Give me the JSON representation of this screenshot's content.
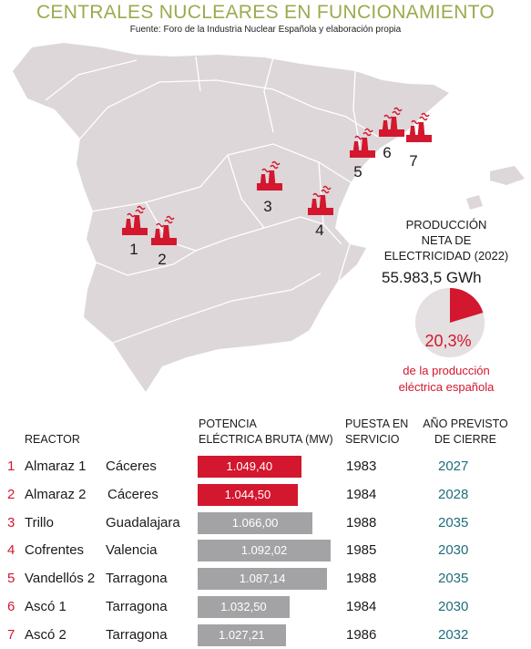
{
  "header": {
    "title": "CENTRALES NUCLEARES EN FUNCIONAMIENTO",
    "source": "Fuente: Foro de la Industria Nuclear Española y elaboración propia"
  },
  "colors": {
    "title": "#9aab4e",
    "accent_red": "#d3172e",
    "bar_gray": "#a3a3a5",
    "map_fill": "#ddd7d9",
    "year_teal": "#1f6e7a"
  },
  "map": {
    "markers": [
      {
        "label": "1",
        "icon": "nuclear-plant-icon"
      },
      {
        "label": "2",
        "icon": "nuclear-plant-icon"
      },
      {
        "label": "3",
        "icon": "nuclear-plant-icon"
      },
      {
        "label": "4",
        "icon": "nuclear-plant-icon"
      },
      {
        "label": "5",
        "icon": "nuclear-plant-icon"
      },
      {
        "label": "6",
        "icon": "nuclear-plant-icon"
      },
      {
        "label": "7",
        "icon": "nuclear-plant-icon"
      }
    ]
  },
  "production": {
    "label_line1": "PRODUCCIÓN",
    "label_line2": "NETA DE",
    "label_line3": "ELECTRICIDAD (2022)",
    "value": "55.983,5 GWh",
    "share_text": "20,3%",
    "share_fraction": 0.203,
    "desc_line1": "de la producción",
    "desc_line2": "eléctrica española"
  },
  "table": {
    "col_reactor": "REACTOR",
    "col_power_line1": "POTENCIA",
    "col_power_line2": "ELÉCTRICA BRUTA (MW)",
    "col_start_line1": "PUESTA EN",
    "col_start_line2": "SERVICIO",
    "col_close_line1": "AÑO PREVISTO",
    "col_close_line2": "DE CIERRE"
  },
  "chart_data": {
    "type": "bar",
    "ylabel": "POTENCIA ELÉCTRICA BRUTA (MW)",
    "rows": [
      {
        "num": "1",
        "reactor": "Almaraz 1",
        "province": "Cáceres",
        "power_text": "1.049,40",
        "power": 1049.4,
        "start": "1983",
        "close": "2027",
        "highlight": true
      },
      {
        "num": "2",
        "reactor": "Almaraz 2",
        "province": "Cáceres",
        "power_text": "1.044,50",
        "power": 1044.5,
        "start": "1984",
        "close": "2028",
        "highlight": true
      },
      {
        "num": "3",
        "reactor": "Trillo",
        "province": "Guadalajara",
        "power_text": "1.066,00",
        "power": 1066.0,
        "start": "1988",
        "close": "2035",
        "highlight": false
      },
      {
        "num": "4",
        "reactor": "Cofrentes",
        "province": "Valencia",
        "power_text": "1.092,02",
        "power": 1092.02,
        "start": "1985",
        "close": "2030",
        "highlight": false
      },
      {
        "num": "5",
        "reactor": "Vandellós 2",
        "province": "Tarragona",
        "power_text": "1.087,14",
        "power": 1087.14,
        "start": "1988",
        "close": "2035",
        "highlight": false
      },
      {
        "num": "6",
        "reactor": "Ascó 1",
        "province": "Tarragona",
        "power_text": "1.032,50",
        "power": 1032.5,
        "start": "1984",
        "close": "2030",
        "highlight": false
      },
      {
        "num": "7",
        "reactor": "Ascó 2",
        "province": "Tarragona",
        "power_text": "1.027,21",
        "power": 1027.21,
        "start": "1986",
        "close": "2032",
        "highlight": false
      }
    ]
  }
}
